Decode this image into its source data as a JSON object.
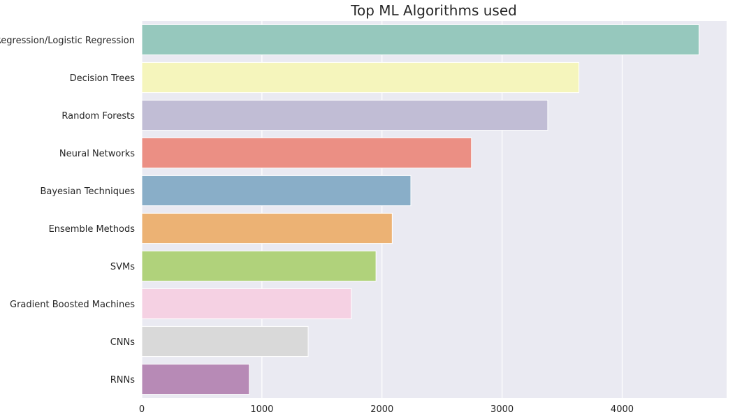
{
  "chart_data": {
    "type": "bar",
    "orientation": "horizontal",
    "title": "Top ML Algorithms used",
    "xlabel": "",
    "ylabel": "",
    "categories": [
      "Regression/Logistic Regression",
      "Decision Trees",
      "Random Forests",
      "Neural Networks",
      "Bayesian Techniques",
      "Ensemble Methods",
      "SVMs",
      "Gradient Boosted Machines",
      "CNNs",
      "RNNs"
    ],
    "values": [
      4640,
      3640,
      3380,
      2745,
      2240,
      2085,
      1950,
      1745,
      1385,
      895
    ],
    "colors": [
      "#96c8bd",
      "#f5f5bc",
      "#c1bdd5",
      "#eb8f84",
      "#89aec8",
      "#ecb274",
      "#b0d27b",
      "#f5d1e3",
      "#d9d9d9",
      "#b78ab6"
    ],
    "xlim": [
      0,
      4870
    ],
    "xticks": [
      0,
      1000,
      2000,
      3000,
      4000
    ],
    "grid": true,
    "background": "#eaeaf2"
  }
}
